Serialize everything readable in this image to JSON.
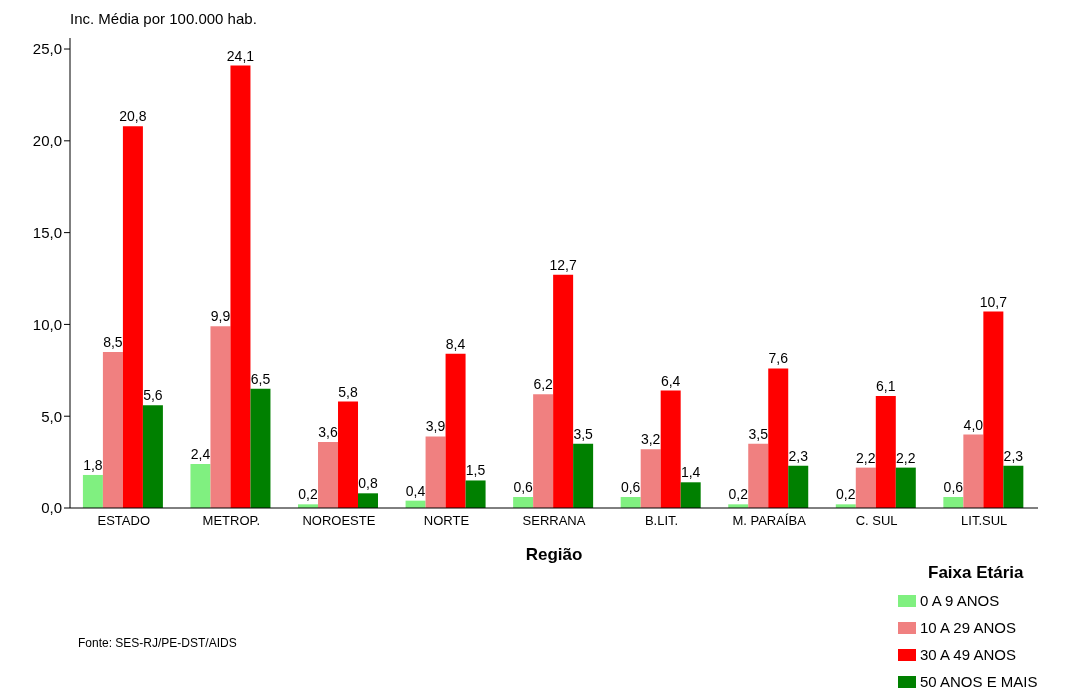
{
  "chart_data": {
    "type": "bar",
    "ylabel": "Inc. Média por 100.000 hab.",
    "xlabel": "Região",
    "legend_title": "Faixa Etária",
    "categories": [
      "ESTADO",
      "METROP.",
      "NOROESTE",
      "NORTE",
      "SERRANA",
      "B.LIT.",
      "M. PARAÍBA",
      "C. SUL",
      "LIT.SUL"
    ],
    "series": [
      {
        "name": "0 A 9 ANOS",
        "color": "#80f080",
        "values": [
          1.8,
          2.4,
          0.2,
          0.4,
          0.6,
          0.6,
          0.2,
          0.2,
          0.6
        ],
        "value_labels": [
          "1,8",
          "2,4",
          "0,2",
          "0,4",
          "0,6",
          "0,6",
          "0,2",
          "0,2",
          "0,6"
        ]
      },
      {
        "name": "10 A 29 ANOS",
        "color": "#f08080",
        "values": [
          8.5,
          9.9,
          3.6,
          3.9,
          6.2,
          3.2,
          3.5,
          2.2,
          4.0
        ],
        "value_labels": [
          "8,5",
          "9,9",
          "3,6",
          "3,9",
          "6,2",
          "3,2",
          "3,5",
          "2,2",
          "4,0"
        ]
      },
      {
        "name": "30 A 49 ANOS",
        "color": "#ff0000",
        "values": [
          20.8,
          24.1,
          5.8,
          8.4,
          12.7,
          6.4,
          7.6,
          6.1,
          10.7
        ],
        "value_labels": [
          "20,8",
          "24,1",
          "5,8",
          "8,4",
          "12,7",
          "6,4",
          "7,6",
          "6,1",
          "10,7"
        ]
      },
      {
        "name": "50 ANOS E MAIS",
        "color": "#008000",
        "values": [
          5.6,
          6.5,
          0.8,
          1.5,
          3.5,
          1.4,
          2.3,
          2.2,
          2.3
        ],
        "value_labels": [
          "5,6",
          "6,5",
          "0,8",
          "1,5",
          "3,5",
          "1,4",
          "2,3",
          "2,2",
          "2,3"
        ]
      }
    ],
    "ylim": [
      0,
      25.6
    ],
    "yticks": [
      {
        "value": 0,
        "label": "0,0"
      },
      {
        "value": 5,
        "label": "5,0"
      },
      {
        "value": 10,
        "label": "10,0"
      },
      {
        "value": 15,
        "label": "15,0"
      },
      {
        "value": 20,
        "label": "20,0"
      },
      {
        "value": 25,
        "label": "25,0"
      }
    ],
    "grid": false,
    "legend": "bottom right",
    "annotations": [
      "Fonte: SES-RJ/PE-DST/AIDS"
    ]
  }
}
